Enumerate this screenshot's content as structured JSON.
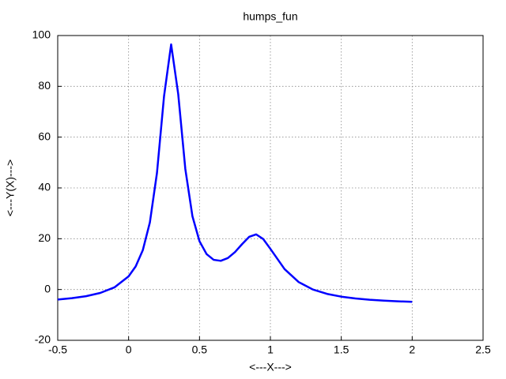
{
  "chart_data": {
    "type": "line",
    "title": "humps_fun",
    "x_label": "<---X--->",
    "y_label": "<---Y(X)--->",
    "x": [
      -0.5,
      -0.4,
      -0.3,
      -0.2,
      -0.1,
      0,
      0.05,
      0.1,
      0.15,
      0.2,
      0.25,
      0.3,
      0.35,
      0.4,
      0.45,
      0.5,
      0.55,
      0.6,
      0.65,
      0.7,
      0.75,
      0.8,
      0.85,
      0.9,
      0.95,
      1.0,
      1.1,
      1.2,
      1.3,
      1.4,
      1.5,
      1.6,
      1.7,
      1.8,
      1.9,
      2.0
    ],
    "series": [
      {
        "color": "#0000ff",
        "values": [
          -3.96,
          -3.42,
          -2.62,
          -1.35,
          0.84,
          5.18,
          9.1,
          15.47,
          26.43,
          45.89,
          76.16,
          96.5,
          76.92,
          47.45,
          28.89,
          19.0,
          13.95,
          11.69,
          11.3,
          12.38,
          14.71,
          17.85,
          20.73,
          21.7,
          19.84,
          16.0,
          8.04,
          2.91,
          -0.01,
          -1.73,
          -2.81,
          -3.53,
          -4.02,
          -4.38,
          -4.65,
          -4.86
        ]
      }
    ],
    "xlim": [
      -0.5,
      2.5
    ],
    "xticks": [
      -0.5,
      0,
      0.5,
      1,
      1.5,
      2,
      2.5
    ],
    "ylim": [
      -20,
      100
    ],
    "yticks": [
      -20,
      0,
      20,
      40,
      60,
      80,
      100
    ],
    "grid": true
  }
}
